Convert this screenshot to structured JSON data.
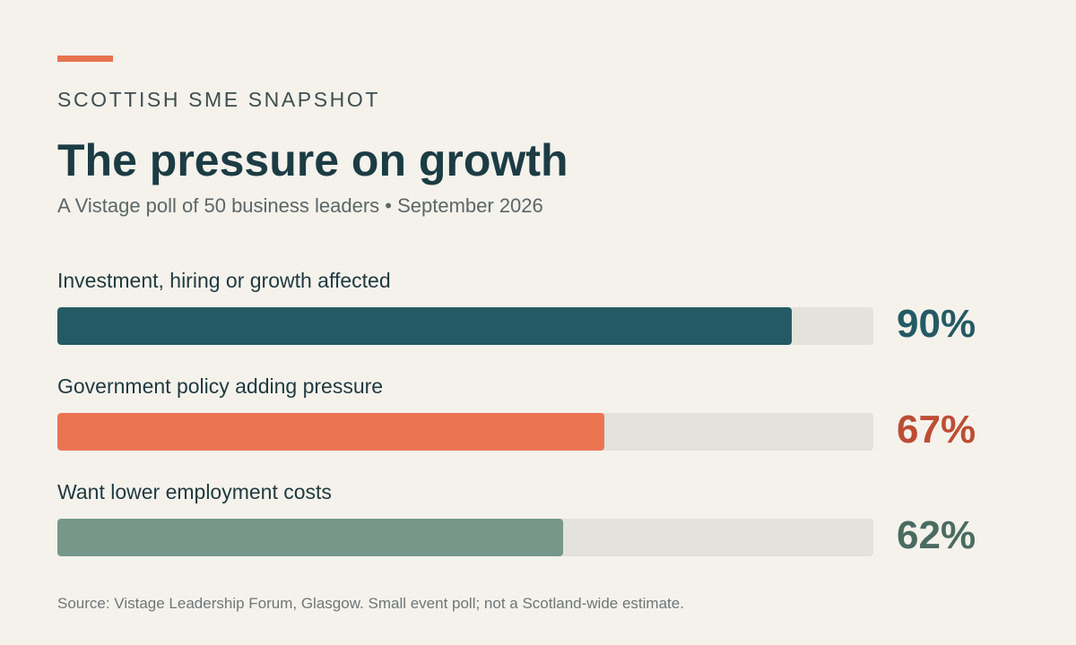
{
  "header": {
    "eyebrow": "SCOTTISH SME SNAPSHOT",
    "title": "The pressure on growth",
    "subtitle": "A Vistage poll of 50 business leaders • September 2026",
    "accent_color": "#e8734e"
  },
  "chart_data": {
    "type": "bar",
    "orientation": "horizontal",
    "categories": [
      "Investment, hiring or growth affected",
      "Government policy adding pressure",
      "Want lower employment costs"
    ],
    "values": [
      90,
      67,
      62
    ],
    "value_labels": [
      "90%",
      "67%",
      "62%"
    ],
    "bar_colors": [
      "#245a64",
      "#ec7551",
      "#77978b"
    ],
    "value_label_colors": [
      "#245a64",
      "#bc4e33",
      "#4a6b62"
    ],
    "track_color": "#e3e2dc",
    "xlim": [
      0,
      100
    ],
    "grid": false,
    "legend": "none"
  },
  "footer": {
    "source": "Source: Vistage Leadership Forum, Glasgow. Small event poll; not a Scotland-wide estimate."
  }
}
